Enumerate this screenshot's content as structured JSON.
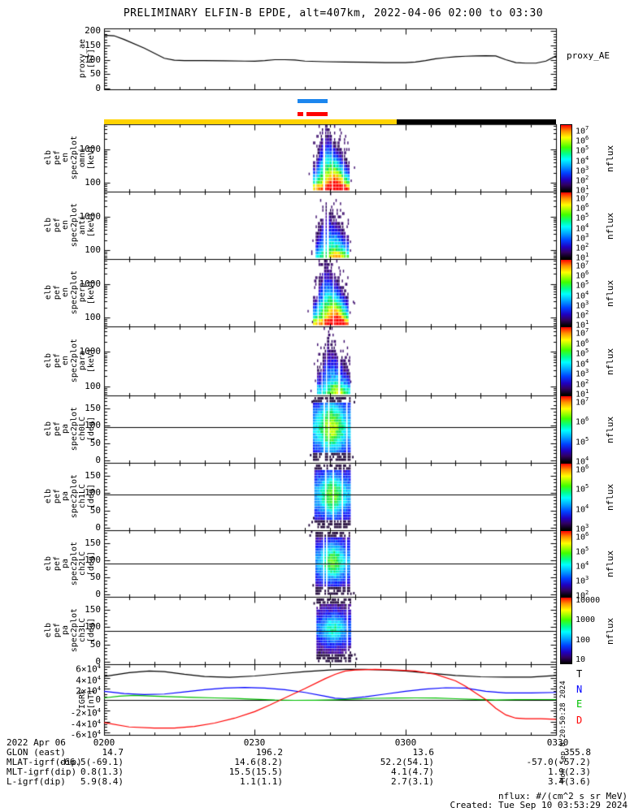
{
  "title": "PRELIMINARY ELFIN-B EPDE, alt=407km, 2022-04-06 02:00 to 03:30",
  "watermark_timestamp": "Mon Sep 8 20:50:28 2024",
  "igrf_legend": [
    {
      "label": "T",
      "color": "#000000"
    },
    {
      "label": "N",
      "color": "#0000ff"
    },
    {
      "label": "E",
      "color": "#00c000"
    },
    {
      "label": "D",
      "color": "#ff0000"
    }
  ],
  "ephemeris_bars": [
    {
      "name": "fast-segment-bar",
      "color": "#1c86ee",
      "start_min": 38.5,
      "end_min": 44.5,
      "row": 0
    },
    {
      "name": "science-zone-bar-a",
      "color": "#ff0000",
      "start_min": 38.5,
      "end_min": 39.7,
      "row": 1
    },
    {
      "name": "science-zone-bar-b",
      "color": "#ff0000",
      "start_min": 40.3,
      "end_min": 44.5,
      "row": 1
    },
    {
      "name": "attitude-known-bar",
      "color": "#ffd300",
      "start_min": 0,
      "end_min": 58.3,
      "row": 2
    },
    {
      "name": "attitude-unknown-bar",
      "color": "#000000",
      "start_min": 58.3,
      "end_min": 90,
      "row": 2
    }
  ],
  "footer": {
    "date_label": "2022 Apr 06",
    "time_ticks": [
      "0200",
      "0230",
      "0300",
      "0330"
    ],
    "rows": [
      {
        "label": "GLON (east)",
        "values": [
          "14.7",
          "196.2",
          "13.6",
          "355.8"
        ]
      },
      {
        "label": "MLAT-igrf(dip)",
        "values": [
          "-66.5(-69.1)",
          "14.6(8.2)",
          "52.2(54.1)",
          "-57.0(-57.2)"
        ]
      },
      {
        "label": "MLT-igrf(dip)",
        "values": [
          "0.8(1.3)",
          "15.5(15.5)",
          "4.1(4.7)",
          "1.9(2.3)"
        ]
      },
      {
        "label": "L-igrf(dip)",
        "values": [
          "5.9(8.4)",
          "1.1(1.1)",
          "2.7(3.1)",
          "3.4(3.6)"
        ]
      }
    ],
    "nflux_units": "nflux: #/(cm^2 s sr MeV)",
    "created": "Created: Tue Sep 10 03:53:29 2024"
  },
  "chart_data": {
    "type": "heatmap",
    "time_axis": {
      "date": "2022-04-06",
      "start": "02:00",
      "end": "03:30",
      "duration_min": 90,
      "major_tick_labels": [
        "0200",
        "0230",
        "0300",
        "0330"
      ],
      "minor_tick_min": 5
    },
    "panels": [
      {
        "id": "proxy_ae",
        "type": "line",
        "ylabel_lines": [
          "proxy_ae",
          "[nT]"
        ],
        "right_label": "proxy_AE",
        "ylim": [
          0,
          200
        ],
        "yticks": [
          0,
          50,
          100,
          150,
          200
        ],
        "x_minutes": [
          0,
          2,
          4,
          8,
          12,
          14,
          16,
          20,
          24,
          28,
          30,
          32,
          34,
          36,
          38,
          40,
          44,
          48,
          52,
          56,
          60,
          62,
          64,
          66,
          68,
          70,
          72,
          74,
          76,
          78,
          80,
          82,
          84,
          86,
          88,
          90
        ],
        "values": [
          185,
          183,
          170,
          140,
          105,
          98,
          97,
          97,
          96,
          95,
          95,
          97,
          100,
          100,
          99,
          95,
          93,
          92,
          91,
          90,
          90,
          92,
          97,
          103,
          107,
          110,
          112,
          113,
          114,
          113,
          100,
          90,
          88,
          88,
          95,
          113
        ]
      },
      {
        "id": "en_omni",
        "type": "heatmap",
        "yscale": "log",
        "ylabel_lines": [
          "elb",
          "pef",
          "en",
          "spec2plot",
          "omni",
          "[keV]"
        ],
        "ylim": [
          55,
          5500
        ],
        "yticks": [
          100,
          1000
        ],
        "colorbar": {
          "label": "nflux",
          "tick_exponents": [
            7,
            6,
            5,
            4,
            3,
            2,
            1
          ]
        },
        "burst": {
          "start_min": 41.5,
          "end_min": 48.7,
          "intensity": 1.0,
          "top_scale": 1.0,
          "seed": 11
        }
      },
      {
        "id": "en_anti",
        "type": "heatmap",
        "yscale": "log",
        "ylabel_lines": [
          "elb",
          "pef",
          "en",
          "spec2plot",
          "anti",
          "[keV]"
        ],
        "ylim": [
          55,
          5500
        ],
        "yticks": [
          100,
          1000
        ],
        "colorbar": {
          "label": "nflux",
          "tick_exponents": [
            7,
            6,
            5,
            4,
            3,
            2,
            1
          ]
        },
        "burst": {
          "start_min": 41.8,
          "end_min": 48.7,
          "intensity": 0.62,
          "top_scale": 0.8,
          "seed": 22
        }
      },
      {
        "id": "en_perp",
        "type": "heatmap",
        "yscale": "log",
        "ylabel_lines": [
          "elb",
          "pef",
          "en",
          "spec2plot",
          "perp",
          "[keV]"
        ],
        "ylim": [
          55,
          5500
        ],
        "yticks": [
          100,
          1000
        ],
        "colorbar": {
          "label": "nflux",
          "tick_exponents": [
            7,
            6,
            5,
            4,
            3,
            2,
            1
          ]
        },
        "burst": {
          "start_min": 41.5,
          "end_min": 48.7,
          "intensity": 0.95,
          "top_scale": 1.0,
          "seed": 33
        }
      },
      {
        "id": "en_para",
        "type": "heatmap",
        "yscale": "log",
        "ylabel_lines": [
          "elb",
          "pef",
          "en",
          "spec2plot",
          "para",
          "[keV]"
        ],
        "ylim": [
          55,
          5500
        ],
        "yticks": [
          100,
          1000
        ],
        "colorbar": {
          "label": "nflux",
          "tick_exponents": [
            7,
            6,
            5,
            4,
            3,
            2,
            1
          ]
        },
        "burst": {
          "start_min": 42.3,
          "end_min": 48.9,
          "intensity": 0.55,
          "top_scale": 0.85,
          "seed": 44
        }
      },
      {
        "id": "pa_ch0lc",
        "type": "heatmap",
        "yscale": "linear",
        "ylabel_lines": [
          "elb",
          "pef",
          "pa",
          "spec2plot",
          "ch0LC",
          "[deg]"
        ],
        "ylim": [
          0,
          180
        ],
        "yticks": [
          0,
          50,
          100,
          150
        ],
        "overlay_line_deg": 95,
        "colorbar": {
          "label": "nflux",
          "tick_exponents": [
            7,
            6,
            5,
            4
          ]
        },
        "burst": {
          "start_min": 41.4,
          "end_min": 48.8,
          "intensity": 0.5,
          "width_deg": 52,
          "seed": 55
        }
      },
      {
        "id": "pa_ch1lc",
        "type": "heatmap",
        "yscale": "linear",
        "ylabel_lines": [
          "elb",
          "pef",
          "pa",
          "spec2plot",
          "ch1LC",
          "[deg]"
        ],
        "ylim": [
          0,
          180
        ],
        "yticks": [
          0,
          50,
          100,
          150
        ],
        "overlay_line_deg": 96,
        "colorbar": {
          "label": "nflux",
          "tick_exponents": [
            6,
            5,
            4,
            3
          ]
        },
        "burst": {
          "start_min": 41.7,
          "end_min": 48.8,
          "intensity": 0.46,
          "width_deg": 44,
          "seed": 66
        }
      },
      {
        "id": "pa_ch2lc",
        "type": "heatmap",
        "yscale": "linear",
        "ylabel_lines": [
          "elb",
          "pef",
          "pa",
          "spec2plot",
          "ch2LC",
          "[deg]"
        ],
        "ylim": [
          0,
          180
        ],
        "yticks": [
          0,
          50,
          100,
          150
        ],
        "overlay_line_deg": 91,
        "colorbar": {
          "label": "nflux",
          "tick_exponents": [
            6,
            5,
            4,
            3,
            2
          ]
        },
        "burst": {
          "start_min": 41.9,
          "end_min": 48.9,
          "intensity": 0.44,
          "width_deg": 39,
          "seed": 77
        }
      },
      {
        "id": "pa_ch3lc",
        "type": "heatmap",
        "yscale": "linear",
        "ylabel_lines": [
          "elb",
          "pef",
          "pa",
          "spec2plot",
          "ch3LC",
          "[deg]"
        ],
        "ylim": [
          0,
          180
        ],
        "yticks": [
          0,
          50,
          100,
          150
        ],
        "overlay_line_deg": 89,
        "colorbar": {
          "label": "nflux",
          "tick_labels": [
            "10000",
            "1000",
            "100",
            "10"
          ]
        },
        "burst": {
          "start_min": 42.1,
          "end_min": 49.0,
          "intensity": 0.36,
          "width_deg": 31,
          "seed": 88
        }
      },
      {
        "id": "igrf",
        "type": "line",
        "ylabel_lines": [
          "IGRF",
          "[nT]"
        ],
        "ylim": [
          -60000,
          60000
        ],
        "ytick_mantissas_e4": [
          6,
          4,
          2,
          0,
          -2,
          -4,
          -6
        ],
        "series": [
          {
            "name": "T",
            "color": "#000000",
            "x_minutes": [
              0,
              5,
              9,
              12,
              16,
              20,
              25,
              30,
              35,
              40,
              45,
              48,
              52,
              56,
              60,
              65,
              70,
              75,
              80,
              85,
              90
            ],
            "values": [
              42000,
              49000,
              52000,
              51000,
              46000,
              42000,
              40500,
              43000,
              47000,
              51000,
              54000,
              55000,
              55000,
              54000,
              52000,
              48000,
              44000,
              41500,
              41000,
              41000,
              44000
            ]
          },
          {
            "name": "N",
            "color": "#0000ff",
            "x_minutes": [
              0,
              4,
              8,
              12,
              16,
              20,
              24,
              28,
              32,
              36,
              40,
              44,
              46,
              48,
              52,
              56,
              60,
              64,
              68,
              72,
              76,
              80,
              85,
              90
            ],
            "values": [
              15000,
              11000,
              9000,
              10000,
              14000,
              18000,
              21000,
              22000,
              21000,
              18000,
              13000,
              6000,
              2500,
              1500,
              5000,
              10000,
              15000,
              19000,
              21500,
              21000,
              15000,
              12000,
              12000,
              13000
            ]
          },
          {
            "name": "E",
            "color": "#00c000",
            "x_minutes": [
              0,
              3,
              6,
              10,
              14,
              18,
              22,
              26,
              30,
              34,
              38,
              42,
              46,
              50,
              54,
              58,
              62,
              66,
              70,
              74,
              78,
              82,
              86,
              90
            ],
            "values": [
              3000,
              6000,
              7500,
              6000,
              5000,
              4000,
              3000,
              2000,
              500,
              -1000,
              -1500,
              -1200,
              -500,
              1000,
              2200,
              2800,
              3000,
              2800,
              1500,
              300,
              -800,
              -300,
              0,
              0
            ]
          },
          {
            "name": "D",
            "color": "#ff0000",
            "x_minutes": [
              0,
              5,
              10,
              14,
              18,
              22,
              26,
              30,
              33,
              36,
              40,
              44,
              46,
              48,
              50,
              54,
              58,
              62,
              66,
              70,
              72,
              74,
              76,
              78,
              80,
              82,
              84,
              87,
              90
            ],
            "values": [
              -42000,
              -50000,
              -52000,
              -52000,
              -49000,
              -43000,
              -34000,
              -22000,
              -10000,
              3000,
              20000,
              38000,
              46000,
              52000,
              54000,
              55000,
              54000,
              52000,
              46000,
              34000,
              24000,
              12000,
              0,
              -16000,
              -28000,
              -34000,
              -35000,
              -35000,
              -36000
            ]
          }
        ]
      }
    ]
  }
}
